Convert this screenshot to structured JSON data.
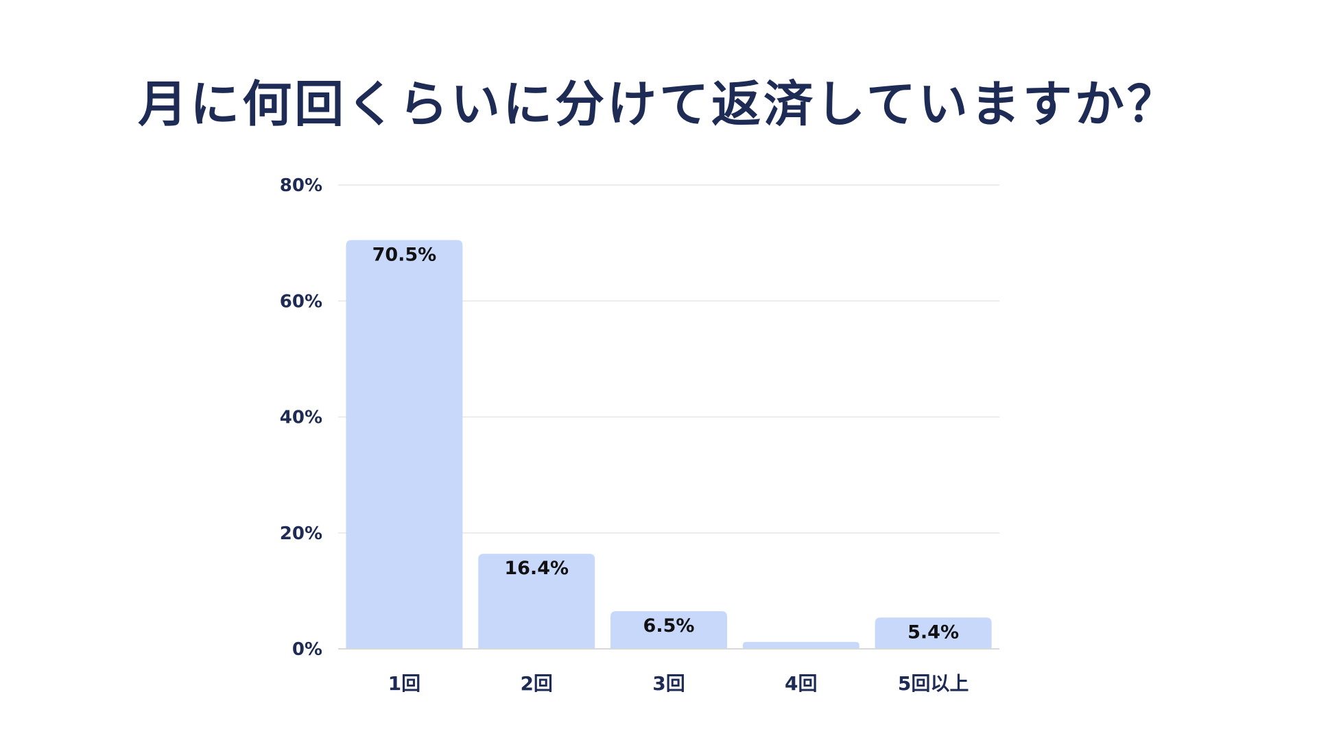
{
  "chart_data": {
    "type": "bar",
    "title": "月に何回くらいに分けて返済していますか？",
    "categories": [
      "1回",
      "2回",
      "3回",
      "4回",
      "5回以上"
    ],
    "values": [
      70.5,
      16.4,
      6.5,
      1.2,
      5.4
    ],
    "data_labels": [
      "70.5%",
      "16.4%",
      "6.5%",
      "",
      "5.4%"
    ],
    "ylim": [
      0,
      80
    ],
    "yticks": [
      0,
      20,
      40,
      60,
      80
    ],
    "ytick_labels": [
      "0%",
      "20%",
      "40%",
      "60%",
      "80%"
    ],
    "xlabel": "",
    "ylabel": "",
    "grid": true,
    "legend": "none",
    "colors": {
      "bar": "#c7d8fb",
      "title": "#1d2b55",
      "tick": "#1d2b55",
      "data_label": "#111111",
      "grid": "#e6e6e6",
      "baseline": "#d9d9d9",
      "background": "#ffffff"
    }
  }
}
